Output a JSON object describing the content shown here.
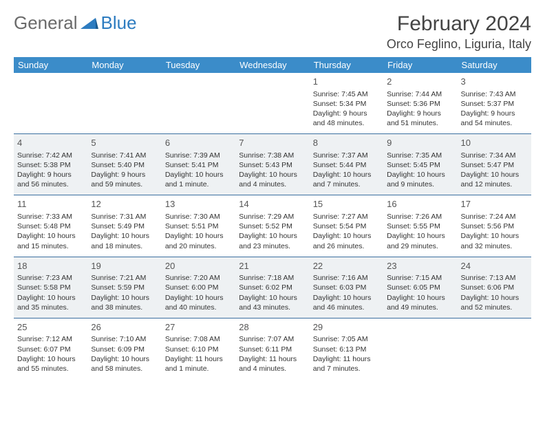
{
  "brand": {
    "part1": "General",
    "part2": "Blue"
  },
  "title": "February 2024",
  "location": "Orco Feglino, Liguria, Italy",
  "colors": {
    "header_bg": "#3b8cc9",
    "header_text": "#ffffff",
    "row_border": "#3b6fa0",
    "alt_row_bg": "#eef1f3",
    "text": "#333333",
    "title_text": "#444444",
    "logo_gray": "#6a6a6a",
    "logo_blue": "#2d7cc0"
  },
  "daynames": [
    "Sunday",
    "Monday",
    "Tuesday",
    "Wednesday",
    "Thursday",
    "Friday",
    "Saturday"
  ],
  "weeks": [
    {
      "alt": false,
      "days": [
        null,
        null,
        null,
        null,
        {
          "n": "1",
          "sr": "Sunrise: 7:45 AM",
          "ss": "Sunset: 5:34 PM",
          "d1": "Daylight: 9 hours",
          "d2": "and 48 minutes."
        },
        {
          "n": "2",
          "sr": "Sunrise: 7:44 AM",
          "ss": "Sunset: 5:36 PM",
          "d1": "Daylight: 9 hours",
          "d2": "and 51 minutes."
        },
        {
          "n": "3",
          "sr": "Sunrise: 7:43 AM",
          "ss": "Sunset: 5:37 PM",
          "d1": "Daylight: 9 hours",
          "d2": "and 54 minutes."
        }
      ]
    },
    {
      "alt": true,
      "days": [
        {
          "n": "4",
          "sr": "Sunrise: 7:42 AM",
          "ss": "Sunset: 5:38 PM",
          "d1": "Daylight: 9 hours",
          "d2": "and 56 minutes."
        },
        {
          "n": "5",
          "sr": "Sunrise: 7:41 AM",
          "ss": "Sunset: 5:40 PM",
          "d1": "Daylight: 9 hours",
          "d2": "and 59 minutes."
        },
        {
          "n": "6",
          "sr": "Sunrise: 7:39 AM",
          "ss": "Sunset: 5:41 PM",
          "d1": "Daylight: 10 hours",
          "d2": "and 1 minute."
        },
        {
          "n": "7",
          "sr": "Sunrise: 7:38 AM",
          "ss": "Sunset: 5:43 PM",
          "d1": "Daylight: 10 hours",
          "d2": "and 4 minutes."
        },
        {
          "n": "8",
          "sr": "Sunrise: 7:37 AM",
          "ss": "Sunset: 5:44 PM",
          "d1": "Daylight: 10 hours",
          "d2": "and 7 minutes."
        },
        {
          "n": "9",
          "sr": "Sunrise: 7:35 AM",
          "ss": "Sunset: 5:45 PM",
          "d1": "Daylight: 10 hours",
          "d2": "and 9 minutes."
        },
        {
          "n": "10",
          "sr": "Sunrise: 7:34 AM",
          "ss": "Sunset: 5:47 PM",
          "d1": "Daylight: 10 hours",
          "d2": "and 12 minutes."
        }
      ]
    },
    {
      "alt": false,
      "days": [
        {
          "n": "11",
          "sr": "Sunrise: 7:33 AM",
          "ss": "Sunset: 5:48 PM",
          "d1": "Daylight: 10 hours",
          "d2": "and 15 minutes."
        },
        {
          "n": "12",
          "sr": "Sunrise: 7:31 AM",
          "ss": "Sunset: 5:49 PM",
          "d1": "Daylight: 10 hours",
          "d2": "and 18 minutes."
        },
        {
          "n": "13",
          "sr": "Sunrise: 7:30 AM",
          "ss": "Sunset: 5:51 PM",
          "d1": "Daylight: 10 hours",
          "d2": "and 20 minutes."
        },
        {
          "n": "14",
          "sr": "Sunrise: 7:29 AM",
          "ss": "Sunset: 5:52 PM",
          "d1": "Daylight: 10 hours",
          "d2": "and 23 minutes."
        },
        {
          "n": "15",
          "sr": "Sunrise: 7:27 AM",
          "ss": "Sunset: 5:54 PM",
          "d1": "Daylight: 10 hours",
          "d2": "and 26 minutes."
        },
        {
          "n": "16",
          "sr": "Sunrise: 7:26 AM",
          "ss": "Sunset: 5:55 PM",
          "d1": "Daylight: 10 hours",
          "d2": "and 29 minutes."
        },
        {
          "n": "17",
          "sr": "Sunrise: 7:24 AM",
          "ss": "Sunset: 5:56 PM",
          "d1": "Daylight: 10 hours",
          "d2": "and 32 minutes."
        }
      ]
    },
    {
      "alt": true,
      "days": [
        {
          "n": "18",
          "sr": "Sunrise: 7:23 AM",
          "ss": "Sunset: 5:58 PM",
          "d1": "Daylight: 10 hours",
          "d2": "and 35 minutes."
        },
        {
          "n": "19",
          "sr": "Sunrise: 7:21 AM",
          "ss": "Sunset: 5:59 PM",
          "d1": "Daylight: 10 hours",
          "d2": "and 38 minutes."
        },
        {
          "n": "20",
          "sr": "Sunrise: 7:20 AM",
          "ss": "Sunset: 6:00 PM",
          "d1": "Daylight: 10 hours",
          "d2": "and 40 minutes."
        },
        {
          "n": "21",
          "sr": "Sunrise: 7:18 AM",
          "ss": "Sunset: 6:02 PM",
          "d1": "Daylight: 10 hours",
          "d2": "and 43 minutes."
        },
        {
          "n": "22",
          "sr": "Sunrise: 7:16 AM",
          "ss": "Sunset: 6:03 PM",
          "d1": "Daylight: 10 hours",
          "d2": "and 46 minutes."
        },
        {
          "n": "23",
          "sr": "Sunrise: 7:15 AM",
          "ss": "Sunset: 6:05 PM",
          "d1": "Daylight: 10 hours",
          "d2": "and 49 minutes."
        },
        {
          "n": "24",
          "sr": "Sunrise: 7:13 AM",
          "ss": "Sunset: 6:06 PM",
          "d1": "Daylight: 10 hours",
          "d2": "and 52 minutes."
        }
      ]
    },
    {
      "alt": false,
      "days": [
        {
          "n": "25",
          "sr": "Sunrise: 7:12 AM",
          "ss": "Sunset: 6:07 PM",
          "d1": "Daylight: 10 hours",
          "d2": "and 55 minutes."
        },
        {
          "n": "26",
          "sr": "Sunrise: 7:10 AM",
          "ss": "Sunset: 6:09 PM",
          "d1": "Daylight: 10 hours",
          "d2": "and 58 minutes."
        },
        {
          "n": "27",
          "sr": "Sunrise: 7:08 AM",
          "ss": "Sunset: 6:10 PM",
          "d1": "Daylight: 11 hours",
          "d2": "and 1 minute."
        },
        {
          "n": "28",
          "sr": "Sunrise: 7:07 AM",
          "ss": "Sunset: 6:11 PM",
          "d1": "Daylight: 11 hours",
          "d2": "and 4 minutes."
        },
        {
          "n": "29",
          "sr": "Sunrise: 7:05 AM",
          "ss": "Sunset: 6:13 PM",
          "d1": "Daylight: 11 hours",
          "d2": "and 7 minutes."
        },
        null,
        null
      ]
    }
  ]
}
